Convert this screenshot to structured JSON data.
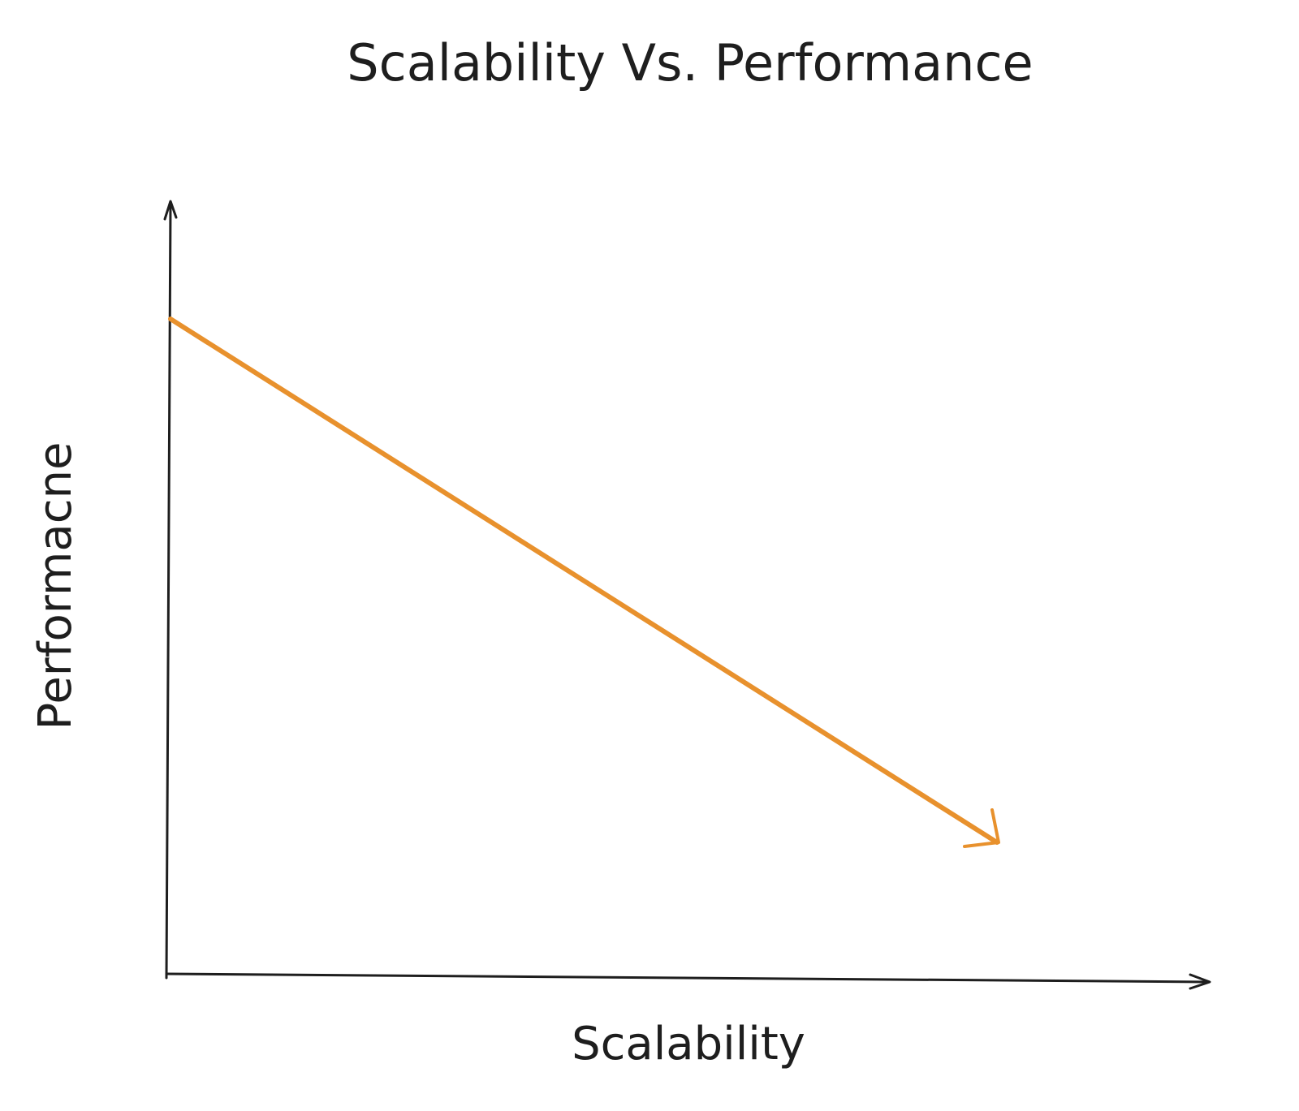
{
  "title": "Scalability Vs. Performance",
  "x_axis_label": "Scalability",
  "y_axis_label": "Performacne"
}
